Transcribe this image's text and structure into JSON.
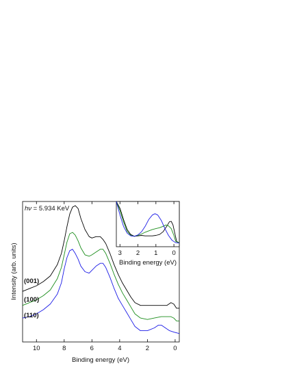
{
  "chart_data": [
    {
      "type": "line",
      "xlabel": "Binding energy (eV)",
      "ylabel": "Intensity (arb. units)",
      "annotation": {
        "italic": "hν",
        "rest": " = 5.934 KeV"
      },
      "xlim": [
        11,
        -0.3
      ],
      "x_reversed": true,
      "ylim": [
        0,
        1
      ],
      "xticks": [
        10,
        8,
        6,
        4,
        2,
        0
      ],
      "series": [
        {
          "name": "(001)",
          "color": "#000000",
          "points": [
            [
              11.0,
              0.36
            ],
            [
              10.5,
              0.38
            ],
            [
              10.0,
              0.4
            ],
            [
              9.5,
              0.43
            ],
            [
              9.0,
              0.47
            ],
            [
              8.5,
              0.55
            ],
            [
              8.2,
              0.63
            ],
            [
              8.0,
              0.72
            ],
            [
              7.8,
              0.82
            ],
            [
              7.6,
              0.91
            ],
            [
              7.4,
              0.96
            ],
            [
              7.2,
              0.97
            ],
            [
              7.0,
              0.95
            ],
            [
              6.8,
              0.88
            ],
            [
              6.5,
              0.8
            ],
            [
              6.2,
              0.75
            ],
            [
              6.0,
              0.74
            ],
            [
              5.7,
              0.75
            ],
            [
              5.4,
              0.75
            ],
            [
              5.2,
              0.73
            ],
            [
              5.0,
              0.7
            ],
            [
              4.7,
              0.63
            ],
            [
              4.4,
              0.55
            ],
            [
              4.1,
              0.48
            ],
            [
              3.8,
              0.42
            ],
            [
              3.5,
              0.37
            ],
            [
              3.2,
              0.32
            ],
            [
              2.9,
              0.28
            ],
            [
              2.5,
              0.26
            ],
            [
              2.0,
              0.26
            ],
            [
              1.5,
              0.26
            ],
            [
              1.0,
              0.26
            ],
            [
              0.6,
              0.26
            ],
            [
              0.3,
              0.28
            ],
            [
              0.1,
              0.27
            ],
            [
              -0.1,
              0.24
            ],
            [
              -0.3,
              0.24
            ]
          ]
        },
        {
          "name": "(100)",
          "color": "#1a8c1a",
          "points": [
            [
              11.0,
              0.26
            ],
            [
              10.5,
              0.28
            ],
            [
              10.0,
              0.3
            ],
            [
              9.5,
              0.33
            ],
            [
              9.0,
              0.37
            ],
            [
              8.5,
              0.45
            ],
            [
              8.2,
              0.53
            ],
            [
              8.0,
              0.62
            ],
            [
              7.8,
              0.71
            ],
            [
              7.6,
              0.77
            ],
            [
              7.4,
              0.78
            ],
            [
              7.2,
              0.76
            ],
            [
              7.0,
              0.72
            ],
            [
              6.8,
              0.67
            ],
            [
              6.5,
              0.62
            ],
            [
              6.2,
              0.61
            ],
            [
              6.0,
              0.62
            ],
            [
              5.7,
              0.64
            ],
            [
              5.4,
              0.66
            ],
            [
              5.2,
              0.66
            ],
            [
              5.0,
              0.63
            ],
            [
              4.7,
              0.56
            ],
            [
              4.4,
              0.48
            ],
            [
              4.1,
              0.41
            ],
            [
              3.8,
              0.35
            ],
            [
              3.5,
              0.3
            ],
            [
              3.2,
              0.25
            ],
            [
              2.9,
              0.2
            ],
            [
              2.5,
              0.17
            ],
            [
              2.0,
              0.16
            ],
            [
              1.5,
              0.17
            ],
            [
              1.0,
              0.18
            ],
            [
              0.6,
              0.18
            ],
            [
              0.3,
              0.18
            ],
            [
              0.1,
              0.17
            ],
            [
              -0.1,
              0.15
            ],
            [
              -0.3,
              0.15
            ]
          ]
        },
        {
          "name": "(110)",
          "color": "#1a1ae6",
          "points": [
            [
              11.0,
              0.17
            ],
            [
              10.5,
              0.18
            ],
            [
              10.0,
              0.2
            ],
            [
              9.5,
              0.23
            ],
            [
              9.0,
              0.27
            ],
            [
              8.5,
              0.34
            ],
            [
              8.2,
              0.42
            ],
            [
              8.0,
              0.52
            ],
            [
              7.8,
              0.6
            ],
            [
              7.6,
              0.65
            ],
            [
              7.4,
              0.66
            ],
            [
              7.2,
              0.63
            ],
            [
              7.0,
              0.59
            ],
            [
              6.8,
              0.54
            ],
            [
              6.5,
              0.5
            ],
            [
              6.2,
              0.49
            ],
            [
              6.0,
              0.51
            ],
            [
              5.7,
              0.54
            ],
            [
              5.4,
              0.56
            ],
            [
              5.2,
              0.56
            ],
            [
              5.0,
              0.53
            ],
            [
              4.7,
              0.46
            ],
            [
              4.4,
              0.38
            ],
            [
              4.1,
              0.31
            ],
            [
              3.8,
              0.26
            ],
            [
              3.5,
              0.21
            ],
            [
              3.2,
              0.16
            ],
            [
              2.9,
              0.11
            ],
            [
              2.5,
              0.08
            ],
            [
              2.0,
              0.08
            ],
            [
              1.5,
              0.1
            ],
            [
              1.2,
              0.12
            ],
            [
              1.0,
              0.12
            ],
            [
              0.7,
              0.1
            ],
            [
              0.4,
              0.08
            ],
            [
              0.1,
              0.07
            ],
            [
              -0.3,
              0.06
            ]
          ]
        }
      ]
    },
    {
      "type": "line",
      "role": "inset",
      "xlabel": "Binding energy (eV)",
      "xlim": [
        3.2,
        -0.3
      ],
      "x_reversed": true,
      "ylim": [
        0,
        1
      ],
      "xticks": [
        3,
        2,
        1,
        0
      ],
      "series": [
        {
          "name": "(001)",
          "color": "#000000",
          "points": [
            [
              3.2,
              1.0
            ],
            [
              3.0,
              0.85
            ],
            [
              2.8,
              0.6
            ],
            [
              2.6,
              0.38
            ],
            [
              2.4,
              0.27
            ],
            [
              2.2,
              0.23
            ],
            [
              2.0,
              0.24
            ],
            [
              1.8,
              0.25
            ],
            [
              1.6,
              0.24
            ],
            [
              1.4,
              0.24
            ],
            [
              1.2,
              0.24
            ],
            [
              1.0,
              0.25
            ],
            [
              0.8,
              0.27
            ],
            [
              0.6,
              0.33
            ],
            [
              0.4,
              0.45
            ],
            [
              0.25,
              0.55
            ],
            [
              0.15,
              0.56
            ],
            [
              0.05,
              0.48
            ],
            [
              -0.05,
              0.3
            ],
            [
              -0.15,
              0.12
            ],
            [
              -0.3,
              0.08
            ]
          ]
        },
        {
          "name": "(100)",
          "color": "#1a8c1a",
          "points": [
            [
              3.2,
              1.0
            ],
            [
              3.0,
              0.8
            ],
            [
              2.8,
              0.55
            ],
            [
              2.6,
              0.34
            ],
            [
              2.4,
              0.25
            ],
            [
              2.2,
              0.23
            ],
            [
              2.0,
              0.25
            ],
            [
              1.8,
              0.28
            ],
            [
              1.6,
              0.32
            ],
            [
              1.4,
              0.35
            ],
            [
              1.2,
              0.38
            ],
            [
              1.0,
              0.4
            ],
            [
              0.8,
              0.42
            ],
            [
              0.6,
              0.45
            ],
            [
              0.45,
              0.48
            ],
            [
              0.3,
              0.46
            ],
            [
              0.15,
              0.4
            ],
            [
              0.0,
              0.25
            ],
            [
              -0.1,
              0.12
            ],
            [
              -0.3,
              0.08
            ]
          ]
        },
        {
          "name": "(110)",
          "color": "#1a1ae6",
          "points": [
            [
              3.2,
              1.0
            ],
            [
              3.0,
              0.7
            ],
            [
              2.8,
              0.45
            ],
            [
              2.6,
              0.3
            ],
            [
              2.4,
              0.24
            ],
            [
              2.2,
              0.23
            ],
            [
              2.0,
              0.26
            ],
            [
              1.8,
              0.33
            ],
            [
              1.6,
              0.45
            ],
            [
              1.4,
              0.6
            ],
            [
              1.2,
              0.7
            ],
            [
              1.05,
              0.73
            ],
            [
              0.9,
              0.7
            ],
            [
              0.7,
              0.58
            ],
            [
              0.5,
              0.4
            ],
            [
              0.3,
              0.25
            ],
            [
              0.1,
              0.14
            ],
            [
              -0.1,
              0.09
            ],
            [
              -0.3,
              0.08
            ]
          ]
        }
      ]
    }
  ]
}
